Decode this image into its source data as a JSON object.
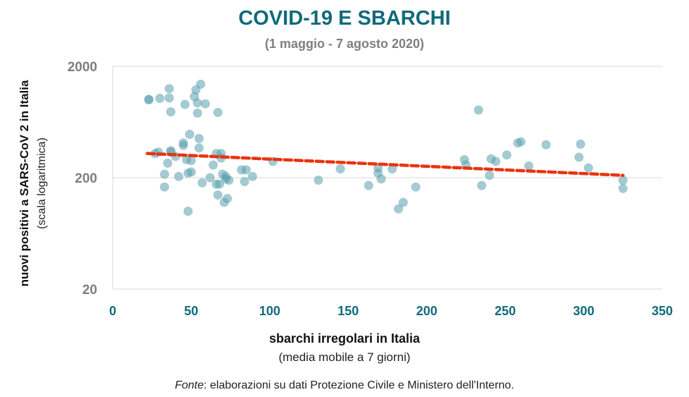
{
  "chart_data": {
    "type": "scatter",
    "title": "COVID-19 E SBARCHI",
    "subtitle": "(1 maggio - 7 agosto 2020)",
    "xlabel": "sbarchi irregolari in Italia",
    "xlabel_sub": "(media mobile a 7 giorni)",
    "ylabel": "nuovi positivi a SARS-CoV 2 in Italia",
    "ylabel_sub": "(scala logaritmica)",
    "x_ticks": [
      "0",
      "50",
      "100",
      "150",
      "200",
      "250",
      "300",
      "350"
    ],
    "y_ticks": [
      "20",
      "200",
      "2000"
    ],
    "xlim": [
      0,
      350
    ],
    "ylim": [
      20,
      2000
    ],
    "y_scale": "log",
    "grid": "horizontal",
    "colors": {
      "points": "#5a9fad",
      "trend": "#e8340e",
      "title": "#0f6a7a",
      "ticks": "#0f6a7a",
      "ytick": "#7f7f7f"
    },
    "points": [
      [
        23,
        1010
      ],
      [
        23,
        1000
      ],
      [
        27,
        330
      ],
      [
        29,
        340
      ],
      [
        30,
        1030
      ],
      [
        33,
        215
      ],
      [
        33,
        165
      ],
      [
        35,
        270
      ],
      [
        36,
        1040
      ],
      [
        36,
        1260
      ],
      [
        37,
        340
      ],
      [
        37,
        350
      ],
      [
        37,
        780
      ],
      [
        40,
        310
      ],
      [
        42,
        205
      ],
      [
        45,
        390
      ],
      [
        45,
        410
      ],
      [
        46,
        910
      ],
      [
        47,
        290
      ],
      [
        48,
        100
      ],
      [
        48,
        220
      ],
      [
        49,
        490
      ],
      [
        50,
        285
      ],
      [
        50,
        225
      ],
      [
        52,
        1070
      ],
      [
        53,
        1230
      ],
      [
        54,
        760
      ],
      [
        54,
        940
      ],
      [
        55,
        450
      ],
      [
        55,
        370
      ],
      [
        56,
        1380
      ],
      [
        57,
        180
      ],
      [
        59,
        920
      ],
      [
        62,
        200
      ],
      [
        64,
        260
      ],
      [
        66,
        175
      ],
      [
        66,
        330
      ],
      [
        67,
        770
      ],
      [
        67,
        140
      ],
      [
        68,
        175
      ],
      [
        69,
        300
      ],
      [
        69,
        330
      ],
      [
        70,
        215
      ],
      [
        71,
        120
      ],
      [
        72,
        195
      ],
      [
        72,
        205
      ],
      [
        73,
        130
      ],
      [
        74,
        190
      ],
      [
        82,
        235
      ],
      [
        84,
        185
      ],
      [
        85,
        235
      ],
      [
        89,
        205
      ],
      [
        102,
        280
      ],
      [
        131,
        190
      ],
      [
        145,
        240
      ],
      [
        163,
        170
      ],
      [
        169,
        220
      ],
      [
        169,
        245
      ],
      [
        171,
        195
      ],
      [
        178,
        240
      ],
      [
        182,
        105
      ],
      [
        185,
        120
      ],
      [
        193,
        165
      ],
      [
        224,
        290
      ],
      [
        225,
        260
      ],
      [
        233,
        810
      ],
      [
        235,
        170
      ],
      [
        240,
        210
      ],
      [
        241,
        295
      ],
      [
        244,
        280
      ],
      [
        251,
        320
      ],
      [
        258,
        410
      ],
      [
        260,
        420
      ],
      [
        265,
        255
      ],
      [
        276,
        395
      ],
      [
        297,
        305
      ],
      [
        298,
        400
      ],
      [
        303,
        245
      ],
      [
        325,
        190
      ],
      [
        325,
        160
      ]
    ],
    "trend": {
      "x": [
        22,
        325
      ],
      "y": [
        330,
        210
      ]
    }
  },
  "source": {
    "label": "Fonte",
    "text": ": elaborazioni su dati Protezione Civile e Ministero dell'Interno."
  }
}
